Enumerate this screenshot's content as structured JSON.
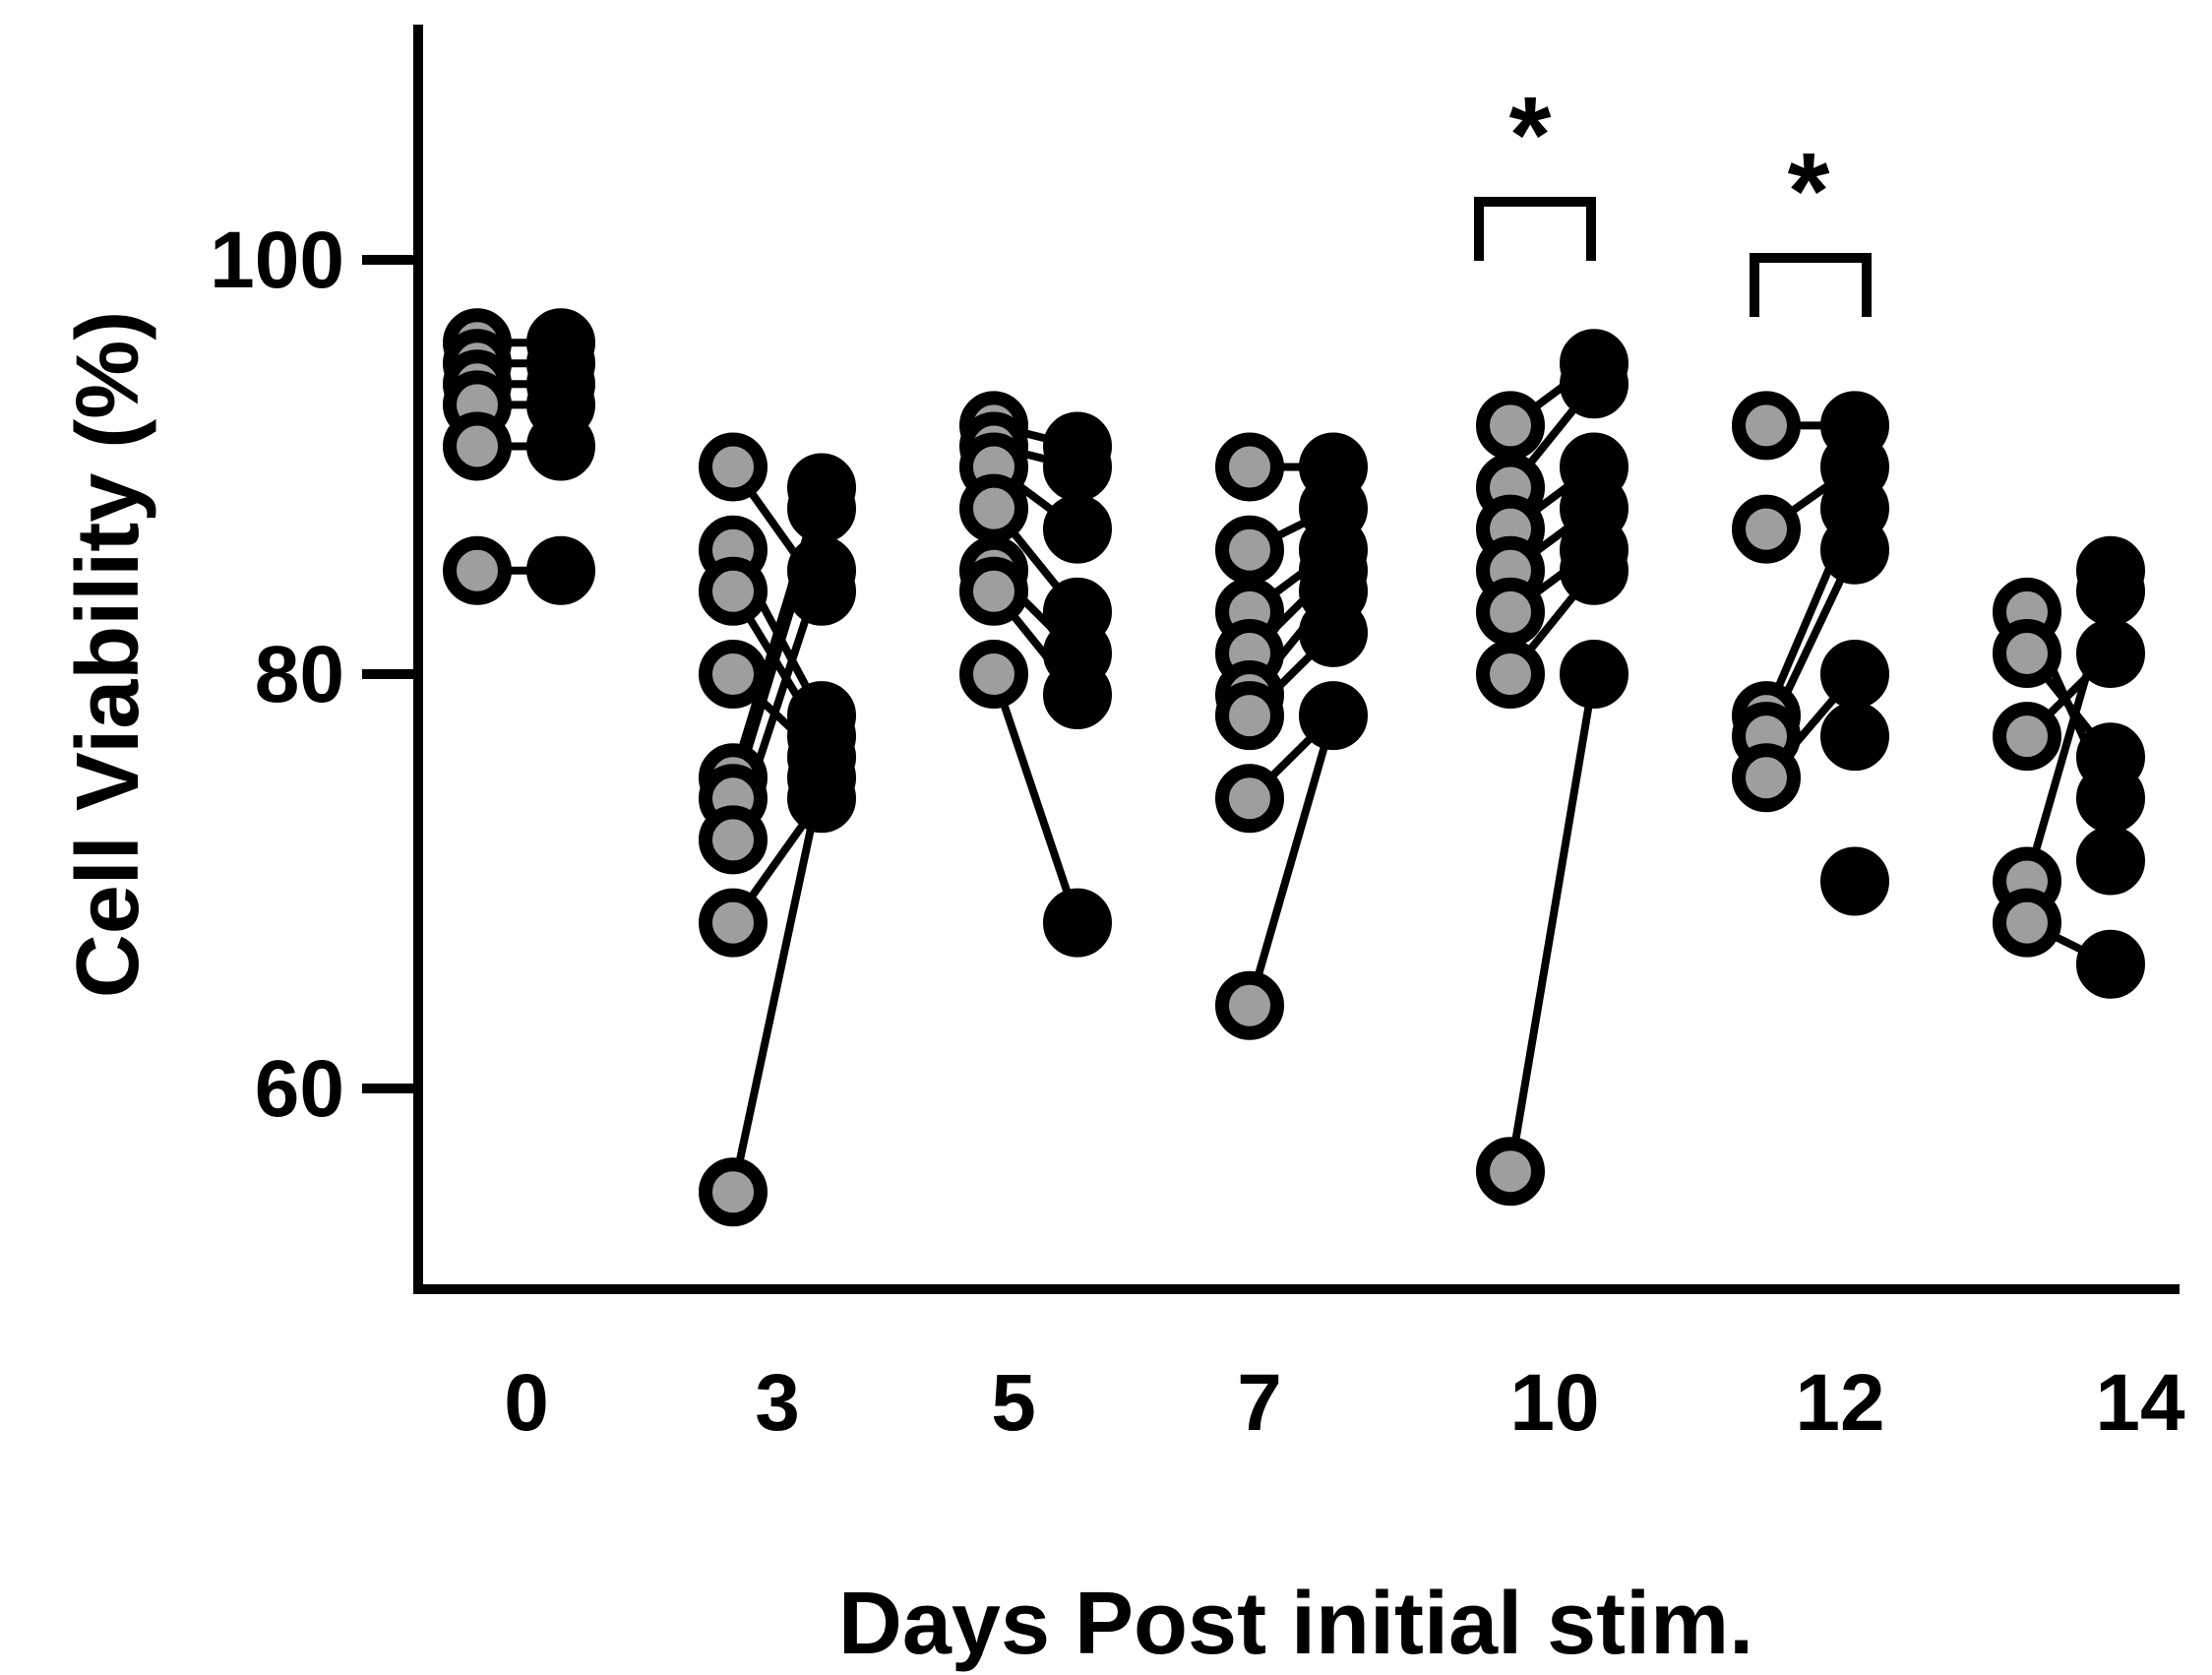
{
  "chart_data": {
    "type": "scatter",
    "xlabel": "Days Post initial stim.",
    "ylabel": "Cell Viability (%)",
    "ylim": [
      50,
      110
    ],
    "yticks": [
      60,
      80,
      100
    ],
    "categories": [
      "0",
      "3",
      "5",
      "7",
      "10",
      "12",
      "14"
    ],
    "colors": {
      "first_series_fill": "#9e9e9e",
      "second_series_fill": "#000000",
      "stroke": "#000000"
    },
    "series": [
      {
        "values": [
          [
            96,
            95,
            94,
            93,
            91,
            85
          ],
          [
            90,
            86,
            84,
            80,
            75,
            74,
            72,
            68,
            55
          ],
          [
            92,
            91,
            90,
            88,
            85,
            84,
            80
          ],
          [
            90,
            86,
            83,
            81,
            79,
            78,
            74,
            64
          ],
          [
            92,
            89,
            87,
            85,
            83,
            80,
            56
          ],
          [
            92,
            87,
            78,
            77,
            75
          ],
          [
            83,
            81,
            77,
            70,
            68
          ]
        ]
      },
      {
        "values": [
          [
            96,
            95,
            94,
            93,
            91,
            85
          ],
          [
            89,
            88,
            85,
            84,
            78,
            77,
            76,
            75,
            74
          ],
          [
            91,
            90,
            87,
            83,
            81,
            79,
            68
          ],
          [
            90,
            88,
            86,
            85,
            84,
            82,
            78
          ],
          [
            95,
            94,
            90,
            88,
            86,
            85,
            80
          ],
          [
            92,
            90,
            88,
            86,
            80,
            77,
            70
          ],
          [
            85,
            84,
            81,
            76,
            74,
            71,
            66
          ]
        ]
      }
    ],
    "pairs": [
      [
        [
          96,
          96
        ],
        [
          95,
          95
        ],
        [
          94,
          94
        ],
        [
          93,
          93
        ],
        [
          91,
          91
        ],
        [
          85,
          85
        ]
      ],
      [
        [
          90,
          84
        ],
        [
          86,
          78
        ],
        [
          84,
          77
        ],
        [
          80,
          76
        ],
        [
          75,
          89
        ],
        [
          74,
          88
        ],
        [
          72,
          85
        ],
        [
          68,
          74
        ],
        [
          55,
          75
        ]
      ],
      [
        [
          92,
          91
        ],
        [
          91,
          90
        ],
        [
          90,
          87
        ],
        [
          88,
          83
        ],
        [
          85,
          81
        ],
        [
          84,
          79
        ],
        [
          80,
          68
        ]
      ],
      [
        [
          90,
          90
        ],
        [
          86,
          88
        ],
        [
          83,
          86
        ],
        [
          81,
          85
        ],
        [
          79,
          84
        ],
        [
          78,
          82
        ],
        [
          74,
          78
        ],
        [
          64,
          78
        ]
      ],
      [
        [
          92,
          95
        ],
        [
          89,
          94
        ],
        [
          87,
          90
        ],
        [
          85,
          88
        ],
        [
          83,
          86
        ],
        [
          80,
          85
        ],
        [
          56,
          80
        ]
      ],
      [
        [
          92,
          92
        ],
        [
          87,
          90
        ],
        [
          78,
          88
        ],
        [
          77,
          86
        ],
        [
          75,
          80
        ]
      ],
      [
        [
          83,
          74
        ],
        [
          81,
          76
        ],
        [
          77,
          81
        ],
        [
          70,
          84
        ],
        [
          68,
          66
        ]
      ]
    ],
    "annotations": [
      {
        "text": "*",
        "category": "10"
      },
      {
        "text": "*",
        "category": "12"
      }
    ]
  }
}
